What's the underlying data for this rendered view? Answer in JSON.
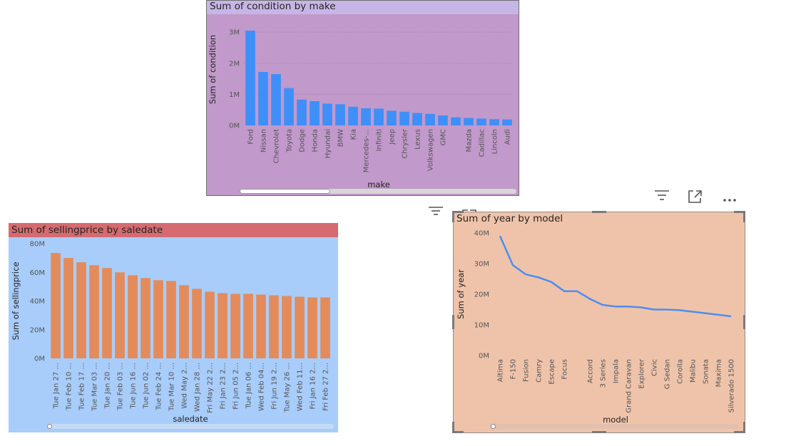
{
  "colors": {
    "make_bg": "#c199cb",
    "make_title_bg": "#c6b6e6",
    "make_bar": "#3f8ff9",
    "sale_bg": "#a8cdfa",
    "sale_title_bg": "#d56b70",
    "sale_bar": "#e48b5b",
    "model_bg": "#efc3aa",
    "model_line": "#4b8ef0"
  },
  "header_icons": [
    "filter-icon",
    "focus-mode-icon",
    "more-options-icon"
  ],
  "chart_data": [
    {
      "type": "bar",
      "title": "Sum of condition by make",
      "xlabel": "make",
      "ylabel": "Sum of condition",
      "ylim": [
        0,
        3600000
      ],
      "yticks": [
        0,
        1000000,
        2000000,
        3000000
      ],
      "ytick_labels": [
        "0M",
        "1M",
        "2M",
        "3M"
      ],
      "grid": true,
      "categories": [
        "Ford",
        "Nissan",
        "Chevrolet",
        "Toyota",
        "Dodge",
        "Honda",
        "Hyundai",
        "BMW",
        "Kia",
        "Mercedes-...",
        "Infiniti",
        "Jeep",
        "Chrysler",
        "Lexus",
        "Volkswagen",
        "GMC",
        "",
        "Mazda",
        "Cadillac",
        "Lincoln",
        "Audi"
      ],
      "values": [
        3050000,
        1720000,
        1650000,
        1200000,
        830000,
        780000,
        700000,
        680000,
        600000,
        550000,
        540000,
        470000,
        440000,
        400000,
        370000,
        320000,
        260000,
        240000,
        220000,
        200000,
        190000
      ]
    },
    {
      "type": "bar",
      "title": "Sum of sellingprice by saledate",
      "xlabel": "saledate",
      "ylabel": "Sum of sellingprice",
      "ylim": [
        0,
        80000000
      ],
      "yticks": [
        0,
        20000000,
        40000000,
        60000000,
        80000000
      ],
      "ytick_labels": [
        "0M",
        "20M",
        "40M",
        "60M",
        "80M"
      ],
      "grid": false,
      "categories": [
        "Tue Jan 27 ...",
        "Tue Feb 10 ...",
        "Tue Feb 17 ...",
        "Tue Mar 03 ...",
        "Tue Jan 20 ...",
        "Tue Feb 03 ...",
        "Tue Jun 16 ...",
        "Tue Jun 02 ...",
        "Tue Feb 24 ...",
        "Tue Mar 10 ...",
        "Wed May 2...",
        "Wed Jan 28 ...",
        "Fri May 22 2...",
        "Fri Jan 23 2...",
        "Fri Jun 05 2...",
        "Tue Jan 06 ...",
        "Wed Feb 04...",
        "Fri Jun 19 2...",
        "Tue May 26 ...",
        "Wed Feb 11...",
        "Fri Jan 16 2...",
        "Fri Feb 27 2..."
      ],
      "values": [
        73500000,
        70000000,
        67000000,
        65000000,
        63000000,
        60000000,
        58000000,
        56000000,
        54500000,
        54000000,
        51000000,
        48500000,
        46500000,
        45500000,
        45000000,
        45000000,
        44500000,
        44000000,
        43500000,
        43000000,
        42500000,
        42500000
      ]
    },
    {
      "type": "line",
      "title": "Sum of year by model",
      "xlabel": "model",
      "ylabel": "Sum of year",
      "ylim": [
        0,
        40000000
      ],
      "yticks": [
        0,
        10000000,
        20000000,
        30000000,
        40000000
      ],
      "ytick_labels": [
        "0M",
        "10M",
        "20M",
        "30M",
        "40M"
      ],
      "grid": false,
      "categories": [
        "Altima",
        "F-150",
        "Fusion",
        "Camry",
        "Escape",
        "Focus",
        "",
        "Accord",
        "3 Series",
        "Impala",
        "Grand Caravan",
        "Explorer",
        "Civic",
        "G Sedan",
        "Corolla",
        "Malibu",
        "Sonata",
        "Maxima",
        "Silverado 1500"
      ],
      "values": [
        39000000,
        29500000,
        26500000,
        25500000,
        24000000,
        21000000,
        21000000,
        18500000,
        16500000,
        16000000,
        16000000,
        15700000,
        15000000,
        15000000,
        14800000,
        14300000,
        13800000,
        13300000,
        12800000
      ]
    }
  ]
}
